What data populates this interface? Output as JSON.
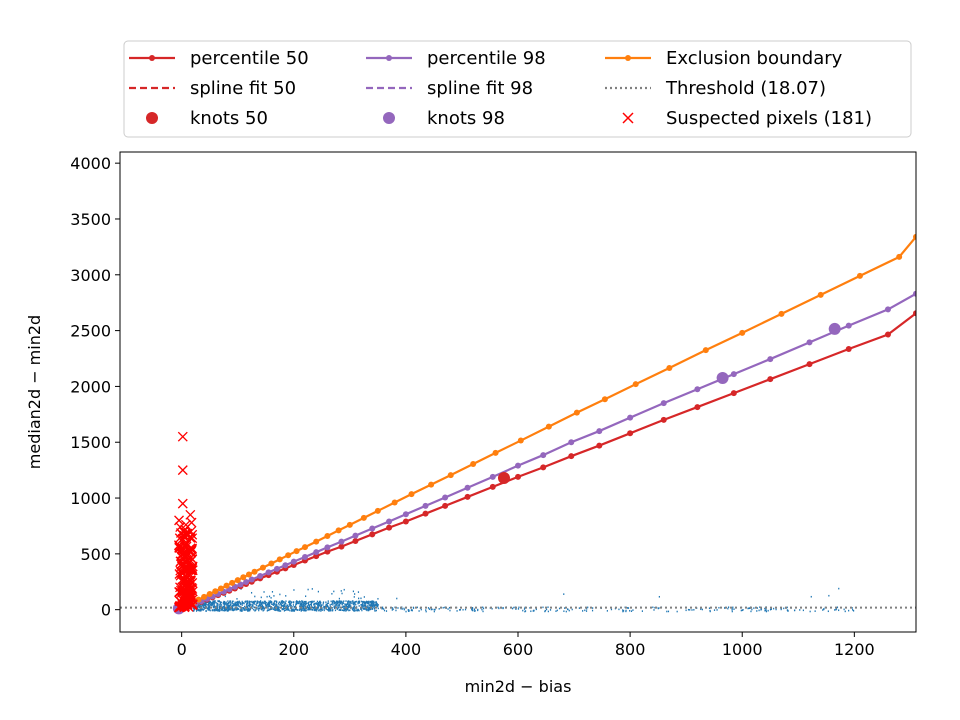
{
  "chart_data": {
    "type": "scatter",
    "xlabel": "min2d − bias",
    "ylabel": "median2d − min2d",
    "xlim": [
      -110,
      1310
    ],
    "ylim": [
      -200,
      4100
    ],
    "xticks": [
      0,
      200,
      400,
      600,
      800,
      1000,
      1200
    ],
    "yticks": [
      0,
      500,
      1000,
      1500,
      2000,
      2500,
      3000,
      3500,
      4000
    ],
    "grid": false,
    "legend_position": "top",
    "legend": [
      {
        "label": "percentile 50",
        "kind": "line-dot",
        "color": "#d62728"
      },
      {
        "label": "spline fit 50",
        "kind": "dashed",
        "color": "#d62728"
      },
      {
        "label": "knots 50",
        "kind": "circle",
        "color": "#d62728"
      },
      {
        "label": "percentile 98",
        "kind": "line-dot",
        "color": "#9467bd"
      },
      {
        "label": "spline fit 98",
        "kind": "dashed",
        "color": "#9467bd"
      },
      {
        "label": "knots 98",
        "kind": "circle",
        "color": "#9467bd"
      },
      {
        "label": "Exclusion boundary",
        "kind": "line-dot",
        "color": "#ff7f0e"
      },
      {
        "label": "Threshold (18.07)",
        "kind": "dotted",
        "color": "#808080"
      },
      {
        "label": "Suspected pixels (181)",
        "kind": "cross",
        "color": "#ff0000"
      }
    ],
    "threshold": 18.07,
    "series": [
      {
        "name": "percentile 50",
        "color": "#d62728",
        "x": [
          5,
          15,
          25,
          35,
          45,
          55,
          65,
          75,
          85,
          95,
          105,
          115,
          125,
          140,
          155,
          170,
          185,
          200,
          220,
          240,
          260,
          285,
          310,
          340,
          370,
          400,
          435,
          470,
          510,
          555,
          600,
          645,
          695,
          745,
          800,
          860,
          920,
          985,
          1050,
          1120,
          1190,
          1260,
          1310
        ],
        "y": [
          10,
          28,
          50,
          70,
          90,
          110,
          130,
          150,
          170,
          190,
          210,
          230,
          250,
          280,
          310,
          340,
          370,
          400,
          440,
          480,
          520,
          565,
          615,
          675,
          735,
          790,
          860,
          930,
          1010,
          1100,
          1190,
          1275,
          1375,
          1470,
          1580,
          1700,
          1815,
          1940,
          2065,
          2200,
          2335,
          2465,
          2655
        ]
      },
      {
        "name": "percentile 98",
        "color": "#9467bd",
        "x": [
          5,
          15,
          25,
          35,
          45,
          55,
          65,
          75,
          85,
          95,
          105,
          115,
          125,
          140,
          155,
          170,
          185,
          200,
          220,
          240,
          260,
          285,
          310,
          340,
          370,
          400,
          435,
          470,
          510,
          555,
          600,
          645,
          695,
          745,
          800,
          860,
          920,
          985,
          1050,
          1120,
          1190,
          1260,
          1310
        ],
        "y": [
          12,
          32,
          55,
          75,
          97,
          118,
          140,
          162,
          183,
          205,
          226,
          248,
          270,
          302,
          334,
          366,
          398,
          430,
          472,
          515,
          558,
          610,
          663,
          727,
          790,
          855,
          930,
          1005,
          1092,
          1190,
          1290,
          1385,
          1500,
          1600,
          1720,
          1850,
          1975,
          2110,
          2245,
          2395,
          2545,
          2690,
          2830
        ]
      },
      {
        "name": "Exclusion boundary",
        "color": "#ff7f0e",
        "x": [
          20,
          30,
          40,
          50,
          60,
          70,
          80,
          90,
          100,
          110,
          120,
          130,
          145,
          160,
          175,
          190,
          205,
          220,
          240,
          260,
          280,
          300,
          325,
          350,
          380,
          410,
          445,
          480,
          520,
          560,
          605,
          655,
          705,
          755,
          810,
          870,
          935,
          1000,
          1070,
          1140,
          1210,
          1280,
          1310
        ],
        "y": [
          60,
          90,
          115,
          140,
          165,
          190,
          215,
          240,
          265,
          290,
          315,
          340,
          377,
          414,
          451,
          488,
          525,
          560,
          610,
          660,
          710,
          760,
          822,
          885,
          960,
          1035,
          1120,
          1205,
          1305,
          1405,
          1515,
          1640,
          1765,
          1885,
          2020,
          2165,
          2325,
          2480,
          2650,
          2820,
          2990,
          3160,
          3340
        ]
      }
    ],
    "knots": [
      {
        "series": "knots 50",
        "color": "#d62728",
        "x": [
          575
        ],
        "y": [
          1180
        ]
      },
      {
        "series": "knots 98",
        "color": "#9467bd",
        "x": [
          -5,
          965,
          1165
        ],
        "y": [
          12,
          2075,
          2515
        ]
      }
    ],
    "suspected_pixels": {
      "name": "Suspected pixels (181)",
      "color": "#ff0000",
      "count": 181,
      "x_range": [
        -5,
        20
      ],
      "y_top": [
        1550,
        1250,
        950,
        850,
        800,
        780,
        760,
        740,
        720,
        700
      ]
    },
    "scatter_cloud": {
      "color": "#1f77b4",
      "x_range": [
        -5,
        1200
      ],
      "y_range": [
        -20,
        200
      ]
    }
  }
}
